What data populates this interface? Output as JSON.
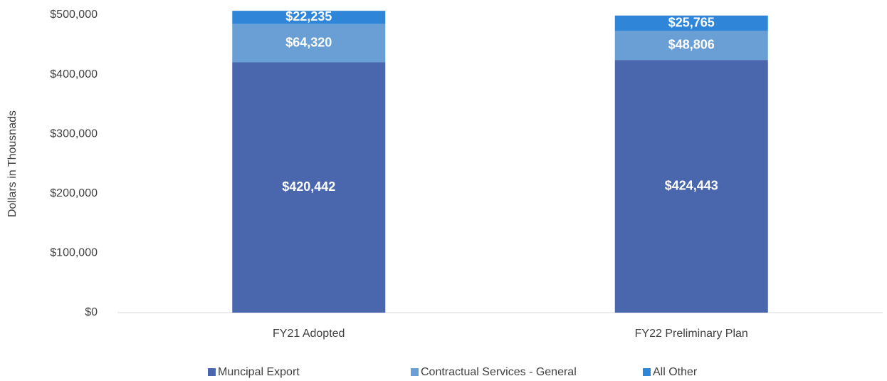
{
  "chart_data": {
    "type": "stacked_bar",
    "y_label": "Dollars in Thousnads",
    "categories": [
      "FY21 Adopted",
      "FY22 Preliminary Plan"
    ],
    "series": [
      {
        "name": "Muncipal Export",
        "color": "#4a66ad",
        "values": [
          420442,
          424443
        ],
        "value_labels": [
          "$420,442",
          "$424,443"
        ]
      },
      {
        "name": "Contractual Services - General",
        "color": "#699fd4",
        "values": [
          64320,
          48806
        ],
        "value_labels": [
          "$64,320",
          "$48,806"
        ]
      },
      {
        "name": "All Other",
        "color": "#2f86d8",
        "values": [
          22235,
          25765
        ],
        "value_labels": [
          "$22,235",
          "$25,765"
        ]
      }
    ],
    "ylim": [
      0,
      500000
    ],
    "yticks": [
      {
        "value": 0,
        "label": "$0"
      },
      {
        "value": 100000,
        "label": "$100,000"
      },
      {
        "value": 200000,
        "label": "$200,000"
      },
      {
        "value": 300000,
        "label": "$300,000"
      },
      {
        "value": 400000,
        "label": "$400,000"
      },
      {
        "value": 500000,
        "label": "$500,000"
      }
    ],
    "legend": "bottom"
  }
}
